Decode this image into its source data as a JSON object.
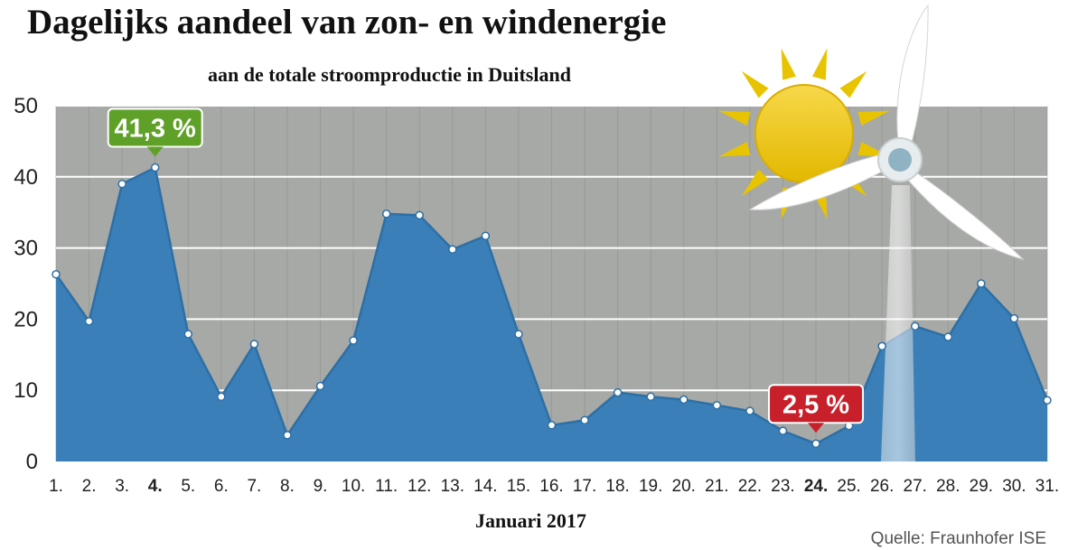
{
  "header": {
    "title": "Dagelijks aandeel van zon- en windenergie",
    "subtitle": "aan de totale stroomproductie in Duitsland"
  },
  "footer": {
    "source": "Quelle: Fraunhofer ISE"
  },
  "colors": {
    "plot_background": "#a6a9a6",
    "area_fill": "#3a7fb8",
    "area_line": "#2d6fa6",
    "gridline": "#ffffff",
    "max_badge": "#5fa128",
    "min_badge": "#c8202a",
    "sun": "#e8c400",
    "turbine": "#ffffff"
  },
  "icons": [
    "sun-icon",
    "wind-turbine-icon"
  ],
  "chart_data": {
    "type": "area",
    "title": "Dagelijks aandeel van zon- en windenergie",
    "subtitle": "aan de totale stroomproductie in Duitsland",
    "xlabel": "Januari 2017",
    "ylabel": "",
    "ylim": [
      0,
      50
    ],
    "yticks": [
      "0",
      "10",
      "20",
      "30",
      "40",
      "50"
    ],
    "grid": true,
    "categories": [
      "1.",
      "2.",
      "3.",
      "4.",
      "5.",
      "6.",
      "7.",
      "8.",
      "9.",
      "10.",
      "11.",
      "12.",
      "13.",
      "14.",
      "15.",
      "16.",
      "17.",
      "18.",
      "19.",
      "20.",
      "21.",
      "22.",
      "23.",
      "24.",
      "25.",
      "26.",
      "27.",
      "28.",
      "29.",
      "30.",
      "31."
    ],
    "bold_categories": [
      "4.",
      "24."
    ],
    "values": [
      26.3,
      19.7,
      39.0,
      41.3,
      17.9,
      9.1,
      16.5,
      3.7,
      10.6,
      17.0,
      34.8,
      34.6,
      29.8,
      31.7,
      17.9,
      5.1,
      5.8,
      9.7,
      9.1,
      8.7,
      7.9,
      7.1,
      4.3,
      2.5,
      5.0,
      16.2,
      19.0,
      17.5,
      25.0,
      20.1,
      8.6
    ],
    "annotations": [
      {
        "category": "4.",
        "label": "41,3 %",
        "kind": "max"
      },
      {
        "category": "24.",
        "label": "2,5 %",
        "kind": "min"
      }
    ]
  }
}
